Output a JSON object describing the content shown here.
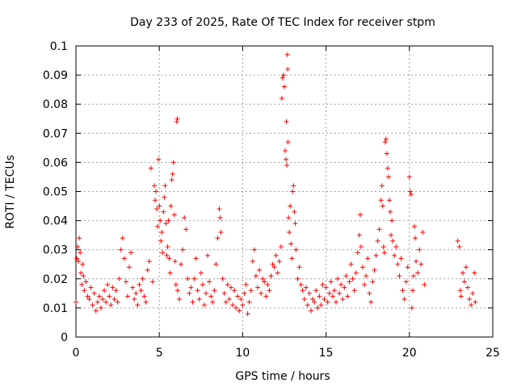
{
  "chart_data": {
    "type": "scatter",
    "title": "Day 233 of 2025, Rate Of TEC Index for receiver stpm",
    "xlabel": "GPS time / hours",
    "ylabel": "ROTI / TECUs",
    "xlim": [
      0,
      25
    ],
    "ylim": [
      0,
      0.1
    ],
    "xticks": [
      0,
      5,
      10,
      15,
      20,
      25
    ],
    "xtick_labels": [
      "0",
      "5",
      "10",
      "15",
      "20",
      "25"
    ],
    "yticks": [
      0,
      0.01,
      0.02,
      0.03,
      0.04,
      0.05,
      0.06,
      0.07,
      0.08,
      0.09,
      0.1
    ],
    "ytick_labels": [
      "0",
      "0.01",
      "0.02",
      "0.03",
      "0.04",
      "0.05",
      "0.06",
      "0.07",
      "0.08",
      "0.09",
      "0.1"
    ],
    "grid": true,
    "marker": "+",
    "colors": {
      "points": "#ff0000",
      "grid": "#a0a0a0",
      "axis": "#000000"
    },
    "series": [
      {
        "points": [
          [
            0.0,
            0.012
          ],
          [
            0.05,
            0.027
          ],
          [
            0.1,
            0.031
          ],
          [
            0.15,
            0.026
          ],
          [
            0.2,
            0.034
          ],
          [
            0.25,
            0.029
          ],
          [
            0.3,
            0.022
          ],
          [
            0.35,
            0.018
          ],
          [
            0.4,
            0.025
          ],
          [
            0.45,
            0.021
          ],
          [
            0.5,
            0.016
          ],
          [
            0.6,
            0.019
          ],
          [
            0.7,
            0.014
          ],
          [
            0.8,
            0.013
          ],
          [
            0.9,
            0.017
          ],
          [
            1.0,
            0.011
          ],
          [
            1.1,
            0.015
          ],
          [
            1.2,
            0.009
          ],
          [
            1.3,
            0.012
          ],
          [
            1.4,
            0.014
          ],
          [
            1.5,
            0.01
          ],
          [
            1.6,
            0.013
          ],
          [
            1.7,
            0.016
          ],
          [
            1.8,
            0.012
          ],
          [
            1.9,
            0.018
          ],
          [
            2.0,
            0.014
          ],
          [
            2.1,
            0.011
          ],
          [
            2.2,
            0.017
          ],
          [
            2.3,
            0.013
          ],
          [
            2.4,
            0.016
          ],
          [
            2.5,
            0.012
          ],
          [
            2.6,
            0.02
          ],
          [
            2.7,
            0.03
          ],
          [
            2.8,
            0.034
          ],
          [
            2.9,
            0.027
          ],
          [
            3.0,
            0.019
          ],
          [
            3.1,
            0.014
          ],
          [
            3.2,
            0.024
          ],
          [
            3.3,
            0.029
          ],
          [
            3.4,
            0.017
          ],
          [
            3.5,
            0.013
          ],
          [
            3.6,
            0.015
          ],
          [
            3.7,
            0.011
          ],
          [
            3.8,
            0.018
          ],
          [
            3.9,
            0.016
          ],
          [
            4.0,
            0.02
          ],
          [
            4.1,
            0.014
          ],
          [
            4.2,
            0.012
          ],
          [
            4.3,
            0.023
          ],
          [
            4.4,
            0.026
          ],
          [
            4.5,
            0.058
          ],
          [
            4.6,
            0.019
          ],
          [
            4.7,
            0.052
          ],
          [
            4.75,
            0.047
          ],
          [
            4.8,
            0.05
          ],
          [
            4.85,
            0.044
          ],
          [
            4.9,
            0.038
          ],
          [
            4.95,
            0.061
          ],
          [
            5.0,
            0.045
          ],
          [
            5.05,
            0.04
          ],
          [
            5.1,
            0.033
          ],
          [
            5.15,
            0.036
          ],
          [
            5.2,
            0.029
          ],
          [
            5.25,
            0.043
          ],
          [
            5.3,
            0.048
          ],
          [
            5.35,
            0.052
          ],
          [
            5.4,
            0.039
          ],
          [
            5.45,
            0.028
          ],
          [
            5.5,
            0.031
          ],
          [
            5.55,
            0.04
          ],
          [
            5.6,
            0.027
          ],
          [
            5.65,
            0.022
          ],
          [
            5.7,
            0.045
          ],
          [
            5.75,
            0.054
          ],
          [
            5.8,
            0.056
          ],
          [
            5.85,
            0.06
          ],
          [
            5.9,
            0.042
          ],
          [
            5.95,
            0.026
          ],
          [
            6.0,
            0.018
          ],
          [
            6.05,
            0.074
          ],
          [
            6.08,
            0.075
          ],
          [
            6.1,
            0.016
          ],
          [
            6.2,
            0.013
          ],
          [
            6.3,
            0.025
          ],
          [
            6.4,
            0.03
          ],
          [
            6.5,
            0.041
          ],
          [
            6.6,
            0.037
          ],
          [
            6.7,
            0.02
          ],
          [
            6.8,
            0.015
          ],
          [
            6.9,
            0.017
          ],
          [
            7.0,
            0.012
          ],
          [
            7.1,
            0.02
          ],
          [
            7.2,
            0.027
          ],
          [
            7.3,
            0.016
          ],
          [
            7.4,
            0.013
          ],
          [
            7.5,
            0.022
          ],
          [
            7.6,
            0.018
          ],
          [
            7.7,
            0.011
          ],
          [
            7.8,
            0.015
          ],
          [
            7.9,
            0.028
          ],
          [
            8.0,
            0.019
          ],
          [
            8.1,
            0.014
          ],
          [
            8.2,
            0.012
          ],
          [
            8.3,
            0.016
          ],
          [
            8.4,
            0.025
          ],
          [
            8.5,
            0.034
          ],
          [
            8.6,
            0.044
          ],
          [
            8.65,
            0.041
          ],
          [
            8.7,
            0.036
          ],
          [
            8.8,
            0.02
          ],
          [
            8.9,
            0.015
          ],
          [
            9.0,
            0.012
          ],
          [
            9.1,
            0.018
          ],
          [
            9.2,
            0.013
          ],
          [
            9.3,
            0.017
          ],
          [
            9.4,
            0.011
          ],
          [
            9.5,
            0.016
          ],
          [
            9.6,
            0.01
          ],
          [
            9.7,
            0.014
          ],
          [
            9.8,
            0.009
          ],
          [
            9.9,
            0.013
          ],
          [
            10.0,
            0.011
          ],
          [
            10.1,
            0.015
          ],
          [
            10.2,
            0.018
          ],
          [
            10.3,
            0.008
          ],
          [
            10.4,
            0.012
          ],
          [
            10.5,
            0.016
          ],
          [
            10.6,
            0.026
          ],
          [
            10.7,
            0.03
          ],
          [
            10.8,
            0.021
          ],
          [
            10.9,
            0.017
          ],
          [
            11.0,
            0.023
          ],
          [
            11.1,
            0.015
          ],
          [
            11.2,
            0.02
          ],
          [
            11.3,
            0.019
          ],
          [
            11.4,
            0.014
          ],
          [
            11.5,
            0.018
          ],
          [
            11.6,
            0.016
          ],
          [
            11.7,
            0.021
          ],
          [
            11.8,
            0.025
          ],
          [
            11.9,
            0.024
          ],
          [
            12.0,
            0.028
          ],
          [
            12.1,
            0.022
          ],
          [
            12.2,
            0.026
          ],
          [
            12.3,
            0.031
          ],
          [
            12.35,
            0.082
          ],
          [
            12.4,
            0.089
          ],
          [
            12.45,
            0.09
          ],
          [
            12.5,
            0.086
          ],
          [
            12.55,
            0.064
          ],
          [
            12.6,
            0.061
          ],
          [
            12.62,
            0.074
          ],
          [
            12.65,
            0.059
          ],
          [
            12.68,
            0.097
          ],
          [
            12.7,
            0.092
          ],
          [
            12.72,
            0.067
          ],
          [
            12.75,
            0.041
          ],
          [
            12.8,
            0.036
          ],
          [
            12.85,
            0.045
          ],
          [
            12.9,
            0.032
          ],
          [
            12.95,
            0.027
          ],
          [
            13.0,
            0.05
          ],
          [
            13.05,
            0.052
          ],
          [
            13.1,
            0.043
          ],
          [
            13.15,
            0.039
          ],
          [
            13.2,
            0.03
          ],
          [
            13.3,
            0.02
          ],
          [
            13.4,
            0.024
          ],
          [
            13.5,
            0.018
          ],
          [
            13.6,
            0.016
          ],
          [
            13.7,
            0.013
          ],
          [
            13.8,
            0.017
          ],
          [
            13.9,
            0.011
          ],
          [
            14.0,
            0.015
          ],
          [
            14.1,
            0.009
          ],
          [
            14.2,
            0.013
          ],
          [
            14.3,
            0.012
          ],
          [
            14.4,
            0.016
          ],
          [
            14.5,
            0.01
          ],
          [
            14.6,
            0.014
          ],
          [
            14.7,
            0.011
          ],
          [
            14.8,
            0.018
          ],
          [
            14.9,
            0.013
          ],
          [
            15.0,
            0.017
          ],
          [
            15.1,
            0.012
          ],
          [
            15.2,
            0.015
          ],
          [
            15.3,
            0.019
          ],
          [
            15.4,
            0.014
          ],
          [
            15.5,
            0.016
          ],
          [
            15.6,
            0.012
          ],
          [
            15.7,
            0.02
          ],
          [
            15.8,
            0.015
          ],
          [
            15.9,
            0.018
          ],
          [
            16.0,
            0.013
          ],
          [
            16.1,
            0.017
          ],
          [
            16.2,
            0.021
          ],
          [
            16.3,
            0.014
          ],
          [
            16.4,
            0.019
          ],
          [
            16.5,
            0.025
          ],
          [
            16.6,
            0.02
          ],
          [
            16.7,
            0.016
          ],
          [
            16.8,
            0.022
          ],
          [
            16.9,
            0.029
          ],
          [
            17.0,
            0.035
          ],
          [
            17.05,
            0.042
          ],
          [
            17.1,
            0.031
          ],
          [
            17.2,
            0.024
          ],
          [
            17.3,
            0.018
          ],
          [
            17.4,
            0.021
          ],
          [
            17.5,
            0.027
          ],
          [
            17.6,
            0.015
          ],
          [
            17.7,
            0.012
          ],
          [
            17.8,
            0.019
          ],
          [
            17.9,
            0.023
          ],
          [
            18.0,
            0.028
          ],
          [
            18.1,
            0.033
          ],
          [
            18.2,
            0.037
          ],
          [
            18.3,
            0.047
          ],
          [
            18.35,
            0.052
          ],
          [
            18.4,
            0.045
          ],
          [
            18.45,
            0.031
          ],
          [
            18.5,
            0.029
          ],
          [
            18.55,
            0.067
          ],
          [
            18.6,
            0.068
          ],
          [
            18.65,
            0.063
          ],
          [
            18.7,
            0.058
          ],
          [
            18.75,
            0.055
          ],
          [
            18.8,
            0.047
          ],
          [
            18.85,
            0.043
          ],
          [
            18.9,
            0.035
          ],
          [
            18.95,
            0.04
          ],
          [
            19.0,
            0.033
          ],
          [
            19.1,
            0.028
          ],
          [
            19.2,
            0.031
          ],
          [
            19.3,
            0.025
          ],
          [
            19.4,
            0.021
          ],
          [
            19.5,
            0.027
          ],
          [
            19.6,
            0.016
          ],
          [
            19.7,
            0.013
          ],
          [
            19.8,
            0.019
          ],
          [
            19.9,
            0.024
          ],
          [
            20.0,
            0.055
          ],
          [
            20.05,
            0.05
          ],
          [
            20.1,
            0.049
          ],
          [
            20.15,
            0.01
          ],
          [
            20.2,
            0.016
          ],
          [
            20.25,
            0.021
          ],
          [
            20.3,
            0.038
          ],
          [
            20.35,
            0.034
          ],
          [
            20.4,
            0.026
          ],
          [
            20.5,
            0.022
          ],
          [
            20.6,
            0.03
          ],
          [
            20.7,
            0.025
          ],
          [
            20.8,
            0.036
          ],
          [
            20.9,
            0.018
          ],
          [
            22.9,
            0.033
          ],
          [
            23.0,
            0.031
          ],
          [
            23.05,
            0.016
          ],
          [
            23.1,
            0.014
          ],
          [
            23.2,
            0.022
          ],
          [
            23.3,
            0.019
          ],
          [
            23.4,
            0.024
          ],
          [
            23.5,
            0.017
          ],
          [
            23.6,
            0.013
          ],
          [
            23.7,
            0.011
          ],
          [
            23.8,
            0.015
          ],
          [
            23.9,
            0.022
          ],
          [
            23.95,
            0.012
          ]
        ]
      }
    ]
  }
}
